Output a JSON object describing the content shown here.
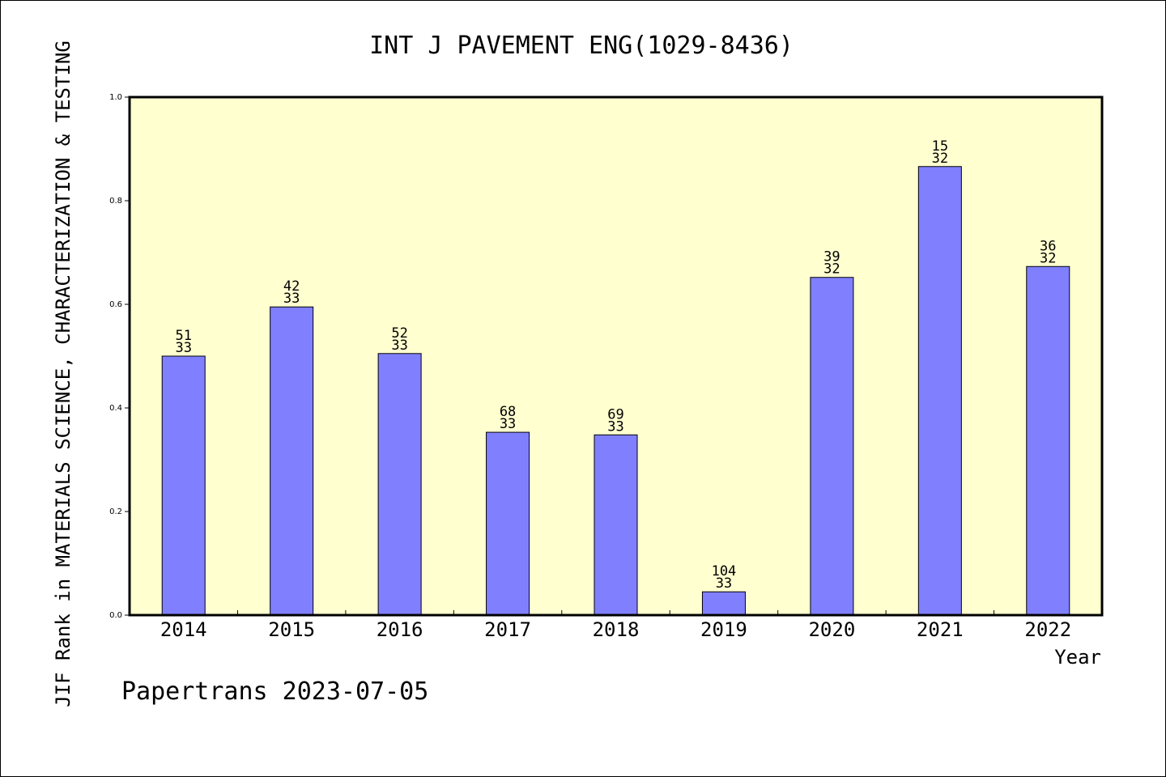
{
  "chart_data": {
    "type": "bar",
    "title": "INT J PAVEMENT ENG(1029-8436)",
    "xlabel": "Year",
    "ylabel": "JIF Rank in MATERIALS SCIENCE, CHARACTERIZATION & TESTING",
    "ylim": [
      0,
      1.0
    ],
    "yticks": [
      "0.0",
      "0.2",
      "0.4",
      "0.6",
      "0.8",
      "1.0"
    ],
    "categories": [
      "2014",
      "2015",
      "2016",
      "2017",
      "2018",
      "2019",
      "2020",
      "2021",
      "2022"
    ],
    "values": [
      0.5,
      0.595,
      0.505,
      0.353,
      0.348,
      0.045,
      0.652,
      0.866,
      0.673
    ],
    "bar_labels": [
      [
        "51",
        "33"
      ],
      [
        "42",
        "33"
      ],
      [
        "52",
        "33"
      ],
      [
        "68",
        "33"
      ],
      [
        "69",
        "33"
      ],
      [
        "104",
        "33"
      ],
      [
        "39",
        "32"
      ],
      [
        "15",
        "32"
      ],
      [
        "36",
        "32"
      ]
    ],
    "grid": false,
    "colors": {
      "bar": "#8080ff",
      "plot_background": "#ffffd0"
    }
  },
  "footer": "Papertrans 2023-07-05"
}
